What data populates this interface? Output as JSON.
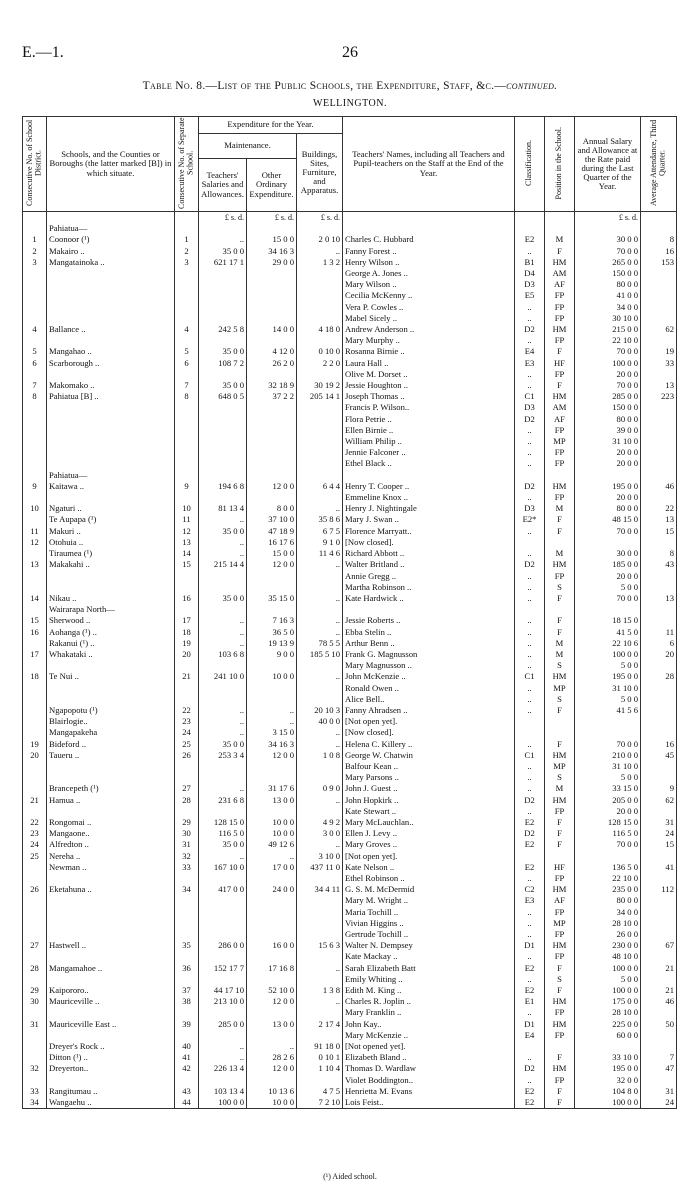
{
  "header": {
    "left": "E.—1.",
    "page": "26"
  },
  "title": "Table No. 8.—List of the Public Schools, the Expenditure, Staff, &c.—",
  "title_suffix": "continued.",
  "subtitle": "WELLINGTON.",
  "table": {
    "columns": {
      "district": "Consecutive No. of School District.",
      "school": "Schools, and the Counties or Boroughs (the latter marked [B]) in which situate.",
      "school_no": "Consecutive No. of Separate School.",
      "expenditure": "Expenditure for the Year.",
      "maintenance": "Maintenance.",
      "teachers_salaries": "Teachers' Salaries and Allowances.",
      "other": "Other Ordinary Expenditure.",
      "buildings": "Buildings, Sites, Furniture, and Apparatus.",
      "teachers": "Teachers' Names, including all Teachers and Pupil-teachers on the Staff at the End of the Year.",
      "classification": "Classification.",
      "position": "Position in the School.",
      "salary": "Annual Salary and Allowance at the Rate paid during the Last Quarter of the Year.",
      "attendance": "Average Attendance, Third Quarter.",
      "money_units": "£ s. d."
    },
    "rows": [
      {
        "s": "Pahiatua—"
      },
      {
        "d": "1",
        "s": "Coonoor (¹)",
        "n": "1",
        "t": "..",
        "o": "15 0 0",
        "b": "2 0 10",
        "name": "Charles C. Hubbard",
        "c": "E2",
        "p": "M",
        "sal": "30 0 0",
        "att": "8"
      },
      {
        "d": "2",
        "s": "Makairo ..",
        "n": "2",
        "t": "35 0 0",
        "o": "34 16 3",
        "b": "..",
        "name": "Fanny Forest ..",
        "c": "..",
        "p": "F",
        "sal": "70 0 0",
        "att": "16"
      },
      {
        "d": "3",
        "s": "Mangatainoka ..",
        "n": "3",
        "t": "621 17 1",
        "o": "29 0 0",
        "b": "1 3 2",
        "name": "Henry Wilson ..",
        "c": "B1",
        "p": "HM",
        "sal": "265 0 0",
        "att": "153"
      },
      {
        "name": "George A. Jones ..",
        "c": "D4",
        "p": "AM",
        "sal": "150 0 0"
      },
      {
        "name": "Mary Wilson ..",
        "c": "D3",
        "p": "AF",
        "sal": "80 0 0"
      },
      {
        "name": "Cecilia McKenny ..",
        "c": "E5",
        "p": "FP",
        "sal": "41 0 0"
      },
      {
        "name": "Vera P. Cowles ..",
        "c": "..",
        "p": "FP",
        "sal": "34 0 0"
      },
      {
        "name": "Mabel Sicely ..",
        "c": "..",
        "p": "FP",
        "sal": "30 10 0"
      },
      {
        "d": "4",
        "s": "Ballance ..",
        "n": "4",
        "t": "242 5 8",
        "o": "14 0 0",
        "b": "4 18 0",
        "name": "Andrew Anderson ..",
        "c": "D2",
        "p": "HM",
        "sal": "215 0 0",
        "att": "62"
      },
      {
        "name": "Mary Murphy ..",
        "c": "..",
        "p": "FP",
        "sal": "22 10 0"
      },
      {
        "d": "5",
        "s": "Mangahao ..",
        "n": "5",
        "t": "35 0 0",
        "o": "4 12 0",
        "b": "0 10 0",
        "name": "Rosanna Birnie ..",
        "c": "E4",
        "p": "F",
        "sal": "70 0 0",
        "att": "19"
      },
      {
        "d": "6",
        "s": "Scarborough ..",
        "n": "6",
        "t": "108 7 2",
        "o": "26 2 0",
        "b": "2 2 0",
        "name": "Laura Hall ..",
        "c": "E3",
        "p": "HF",
        "sal": "100 0 0",
        "att": "33"
      },
      {
        "name": "Olive M. Dorset ..",
        "c": "..",
        "p": "FP",
        "sal": "20 0 0"
      },
      {
        "d": "7",
        "s": "Makomako ..",
        "n": "7",
        "t": "35 0 0",
        "o": "32 18 9",
        "b": "30 19 2",
        "name": "Jessie Houghton ..",
        "c": "..",
        "p": "F",
        "sal": "70 0 0",
        "att": "13"
      },
      {
        "d": "8",
        "s": "Pahiatua [B] ..",
        "n": "8",
        "t": "648 0 5",
        "o": "37 2 2",
        "b": "205 14 1",
        "name": "Joseph Thomas ..",
        "c": "C1",
        "p": "HM",
        "sal": "285 0 0",
        "att": "223"
      },
      {
        "name": "Francis P. Wilson..",
        "c": "D3",
        "p": "AM",
        "sal": "150 0 0"
      },
      {
        "name": "Flora Petrie ..",
        "c": "D2",
        "p": "AF",
        "sal": "80 0 0"
      },
      {
        "name": "Ellen Birnie ..",
        "c": "..",
        "p": "FP",
        "sal": "39 0 0"
      },
      {
        "name": "William Philip ..",
        "c": "..",
        "p": "MP",
        "sal": "31 10 0"
      },
      {
        "name": "Jennie Falconer ..",
        "c": "..",
        "p": "FP",
        "sal": "20 0 0"
      },
      {
        "name": "Ethel Black ..",
        "c": "..",
        "p": "FP",
        "sal": "20 0 0"
      },
      {
        "s": "Pahiatua—"
      },
      {
        "d": "9",
        "s": "Kaitawa ..",
        "n": "9",
        "t": "194 6 8",
        "o": "12 0 0",
        "b": "6 4 4",
        "name": "Henry T. Cooper ..",
        "c": "D2",
        "p": "HM",
        "sal": "195 0 0",
        "att": "46"
      },
      {
        "name": "Emmeline Knox ..",
        "c": "..",
        "p": "FP",
        "sal": "20 0 0"
      },
      {
        "d": "10",
        "s": "Ngaturi ..",
        "n": "10",
        "t": "81 13 4",
        "o": "8 0 0",
        "b": "..",
        "name": "Henry J. Nightingale",
        "c": "D3",
        "p": "M",
        "sal": "80 0 0",
        "att": "22"
      },
      {
        "s": "Te Aupapa (¹)",
        "n": "11",
        "t": "..",
        "o": "37 10 0",
        "b": "35 8 6",
        "name": "Mary J. Swan ..",
        "c": "E2*",
        "p": "F",
        "sal": "48 15 0",
        "att": "13"
      },
      {
        "d": "11",
        "s": "Makuri ..",
        "n": "12",
        "t": "35 0 0",
        "o": "47 18 9",
        "b": "6 7 5",
        "name": "Florence Marryatt..",
        "c": "..",
        "p": "F",
        "sal": "70 0 0",
        "att": "15"
      },
      {
        "d": "12",
        "s": "Otohuia ..",
        "n": "13",
        "t": "..",
        "o": "16 17 6",
        "b": "9 1 0",
        "name": "[Now closed]."
      },
      {
        "s": "Tiraumea (¹)",
        "n": "14",
        "t": "..",
        "o": "15 0 0",
        "b": "11 4 6",
        "name": "Richard Abbott ..",
        "c": "..",
        "p": "M",
        "sal": "30 0 0",
        "att": "8"
      },
      {
        "d": "13",
        "s": "Makakahi ..",
        "n": "15",
        "t": "215 14 4",
        "o": "12 0 0",
        "b": "..",
        "name": "Walter Britland ..",
        "c": "D2",
        "p": "HM",
        "sal": "185 0 0",
        "att": "43"
      },
      {
        "name": "Annie Gregg ..",
        "c": "..",
        "p": "FP",
        "sal": "20 0 0"
      },
      {
        "name": "Martha Robinson ..",
        "c": "..",
        "p": "S",
        "sal": "5 0 0"
      },
      {
        "d": "14",
        "s": "Nikau ..",
        "n": "16",
        "t": "35 0 0",
        "o": "35 15 0",
        "b": "..",
        "name": "Kate Hardwick ..",
        "c": "..",
        "p": "F",
        "sal": "70 0 0",
        "att": "13"
      },
      {
        "s": "Wairarapa North—"
      },
      {
        "d": "15",
        "s": "Sherwood ..",
        "n": "17",
        "t": "..",
        "o": "7 16 3",
        "b": "..",
        "name": "Jessie Roberts ..",
        "c": "..",
        "p": "F",
        "sal": "18 15 0"
      },
      {
        "d": "16",
        "s": "Aohanga (¹) ..",
        "n": "18",
        "t": "..",
        "o": "36 5 0",
        "b": "..",
        "name": "Ebba Stelin ..",
        "c": "..",
        "p": "F",
        "sal": "41 5 0",
        "att": "11"
      },
      {
        "s": "Rakanui (¹) ..",
        "n": "19",
        "t": "..",
        "o": "19 13 9",
        "b": "78 5 5",
        "name": "Arthur Benn ..",
        "c": "..",
        "p": "M",
        "sal": "22 10 6",
        "att": "6"
      },
      {
        "d": "17",
        "s": "Whakataki ..",
        "n": "20",
        "t": "103 6 8",
        "o": "9 0 0",
        "b": "185 5 10",
        "name": "Frank G. Magnusson",
        "c": "..",
        "p": "M",
        "sal": "100 0 0",
        "att": "20"
      },
      {
        "name": "Mary Magnusson ..",
        "c": "..",
        "p": "S",
        "sal": "5 0 0"
      },
      {
        "d": "18",
        "s": "Te Nui ..",
        "n": "21",
        "t": "241 10 0",
        "o": "10 0 0",
        "b": "..",
        "name": "John McKenzie ..",
        "c": "C1",
        "p": "HM",
        "sal": "195 0 0",
        "att": "28"
      },
      {
        "name": "Ronald Owen ..",
        "c": "..",
        "p": "MP",
        "sal": "31 10 0"
      },
      {
        "name": "Alice Bell..",
        "c": "..",
        "p": "S",
        "sal": "5 0 0"
      },
      {
        "s": "Ngapopotu (¹)",
        "n": "22",
        "t": "..",
        "o": "..",
        "b": "20 10 3",
        "name": "Fanny Ahradsen ..",
        "c": "..",
        "p": "F",
        "sal": "41 5 6"
      },
      {
        "s": "Blairlogie..",
        "n": "23",
        "t": "..",
        "o": "..",
        "b": "40 0 0",
        "name": "[Not open yet]."
      },
      {
        "s": "Mangapakeha",
        "n": "24",
        "t": "..",
        "o": "3 15 0",
        "b": "..",
        "name": "[Now closed]."
      },
      {
        "d": "19",
        "s": "Bideford ..",
        "n": "25",
        "t": "35 0 0",
        "o": "34 16 3",
        "b": "..",
        "name": "Helena C. Killery ..",
        "c": "..",
        "p": "F",
        "sal": "70 0 0",
        "att": "16"
      },
      {
        "d": "20",
        "s": "Taueru ..",
        "n": "26",
        "t": "253 3 4",
        "o": "12 0 0",
        "b": "1 0 8",
        "name": "George W. Chatwin",
        "c": "C1",
        "p": "HM",
        "sal": "210 0 0",
        "att": "45"
      },
      {
        "name": "Balfour Kean ..",
        "c": "..",
        "p": "MP",
        "sal": "31 10 0"
      },
      {
        "name": "Mary Parsons ..",
        "c": "..",
        "p": "S",
        "sal": "5 0 0"
      },
      {
        "s": "Brancepeth (¹)",
        "n": "27",
        "t": "..",
        "o": "31 17 6",
        "b": "0 9 0",
        "name": "John J. Guest ..",
        "c": "..",
        "p": "M",
        "sal": "33 15 0",
        "att": "9"
      },
      {
        "d": "21",
        "s": "Hamua ..",
        "n": "28",
        "t": "231 6 8",
        "o": "13 0 0",
        "b": "..",
        "name": "John Hopkirk ..",
        "c": "D2",
        "p": "HM",
        "sal": "205 0 0",
        "att": "62"
      },
      {
        "name": "Kate Stewart ..",
        "c": "..",
        "p": "FP",
        "sal": "20 0 0"
      },
      {
        "d": "22",
        "s": "Rongomai ..",
        "n": "29",
        "t": "128 15 0",
        "o": "10 0 0",
        "b": "4 9 2",
        "name": "Mary McLauchlan..",
        "c": "E2",
        "p": "F",
        "sal": "128 15 0",
        "att": "31"
      },
      {
        "d": "23",
        "s": "Mangaone..",
        "n": "30",
        "t": "116 5 0",
        "o": "10 0 0",
        "b": "3 0 0",
        "name": "Ellen J. Levy ..",
        "c": "D2",
        "p": "F",
        "sal": "116 5 0",
        "att": "24"
      },
      {
        "d": "24",
        "s": "Alfredton ..",
        "n": "31",
        "t": "35 0 0",
        "o": "49 12 6",
        "b": "..",
        "name": "Mary Groves ..",
        "c": "E2",
        "p": "F",
        "sal": "70 0 0",
        "att": "15"
      },
      {
        "d": "25",
        "s": "Nereha ..",
        "n": "32",
        "t": "..",
        "o": "..",
        "b": "3 10 0",
        "name": "[Not open yet]."
      },
      {
        "s": "Newman ..",
        "n": "33",
        "t": "167 10 0",
        "o": "17 0 0",
        "b": "437 11 0",
        "name": "Kate Nelson ..",
        "c": "E2",
        "p": "HF",
        "sal": "136 5 0",
        "att": "41"
      },
      {
        "name": "Ethel Robinson ..",
        "c": "..",
        "p": "FP",
        "sal": "22 10 0"
      },
      {
        "d": "26",
        "s": "Eketahuna ..",
        "n": "34",
        "t": "417 0 0",
        "o": "24 0 0",
        "b": "34 4 11",
        "name": "G. S. M. McDermid",
        "c": "C2",
        "p": "HM",
        "sal": "235 0 0",
        "att": "112"
      },
      {
        "name": "Mary M. Wright ..",
        "c": "E3",
        "p": "AF",
        "sal": "80 0 0"
      },
      {
        "name": "Maria Tochill ..",
        "c": "..",
        "p": "FP",
        "sal": "34 0 0"
      },
      {
        "name": "Vivian Higgins ..",
        "c": "..",
        "p": "MP",
        "sal": "28 10 0"
      },
      {
        "name": "Gertrude Tochill ..",
        "c": "..",
        "p": "FP",
        "sal": "26 0 0"
      },
      {
        "d": "27",
        "s": "Hastwell ..",
        "n": "35",
        "t": "286 0 0",
        "o": "16 0 0",
        "b": "15 6 3",
        "name": "Walter N. Dempsey",
        "c": "D1",
        "p": "HM",
        "sal": "230 0 0",
        "att": "67"
      },
      {
        "name": "Kate Mackay ..",
        "c": "..",
        "p": "FP",
        "sal": "48 10 0"
      },
      {
        "d": "28",
        "s": "Mangamahoe ..",
        "n": "36",
        "t": "152 17 7",
        "o": "17 16 8",
        "b": "..",
        "name": "Sarah Elizabeth Batt",
        "c": "E2",
        "p": "F",
        "sal": "100 0 0",
        "att": "21"
      },
      {
        "name": "Emily Whiting ..",
        "c": "..",
        "p": "S",
        "sal": "5 0 0"
      },
      {
        "d": "29",
        "s": "Kaipororo..",
        "n": "37",
        "t": "44 17 10",
        "o": "52 10 0",
        "b": "1 3 8",
        "name": "Edith M. King ..",
        "c": "E2",
        "p": "F",
        "sal": "100 0 0",
        "att": "21"
      },
      {
        "d": "30",
        "s": "Mauriceville ..",
        "n": "38",
        "t": "213 10 0",
        "o": "12 0 0",
        "b": "..",
        "name": "Charles R. Joplin ..",
        "c": "E1",
        "p": "HM",
        "sal": "175 0 0",
        "att": "46"
      },
      {
        "name": "Mary Franklin ..",
        "c": "..",
        "p": "FP",
        "sal": "28 10 0"
      },
      {
        "d": "31",
        "s": "Mauriceville East ..",
        "n": "39",
        "t": "285 0 0",
        "o": "13 0 0",
        "b": "2 17 4",
        "name": "John Kay..",
        "c": "D1",
        "p": "HM",
        "sal": "225 0 0",
        "att": "50"
      },
      {
        "name": "Mary McKenzie ..",
        "c": "E4",
        "p": "FP",
        "sal": "60 0 0"
      },
      {
        "s": "Dreyer's Rock ..",
        "n": "40",
        "t": "..",
        "o": "..",
        "b": "91 18 0",
        "name": "[Not opened yet]."
      },
      {
        "s": "Ditton (¹) ..",
        "n": "41",
        "t": "..",
        "o": "28 2 6",
        "b": "0 10 1",
        "name": "Elizabeth Bland ..",
        "c": "..",
        "p": "F",
        "sal": "33 10 0",
        "att": "7"
      },
      {
        "d": "32",
        "s": "Dreyerton..",
        "n": "42",
        "t": "226 13 4",
        "o": "12 0 0",
        "b": "1 10 4",
        "name": "Thomas D. Wardlaw",
        "c": "D2",
        "p": "HM",
        "sal": "195 0 0",
        "att": "47"
      },
      {
        "name": "Violet Boddington..",
        "c": "..",
        "p": "FP",
        "sal": "32 0 0"
      },
      {
        "d": "33",
        "s": "Rangitumau ..",
        "n": "43",
        "t": "103 13 4",
        "o": "10 13 6",
        "b": "4 7 5",
        "name": "Henrietta M. Evans",
        "c": "E2",
        "p": "F",
        "sal": "104 8 0",
        "att": "31"
      },
      {
        "d": "34",
        "s": "Wangaehu ..",
        "n": "44",
        "t": "100 0 0",
        "o": "10 0 0",
        "b": "7 2 10",
        "name": "Lois Feist..",
        "c": "E2",
        "p": "F",
        "sal": "100 0 0",
        "att": "24"
      }
    ]
  },
  "footnote": "(¹) Aided school."
}
